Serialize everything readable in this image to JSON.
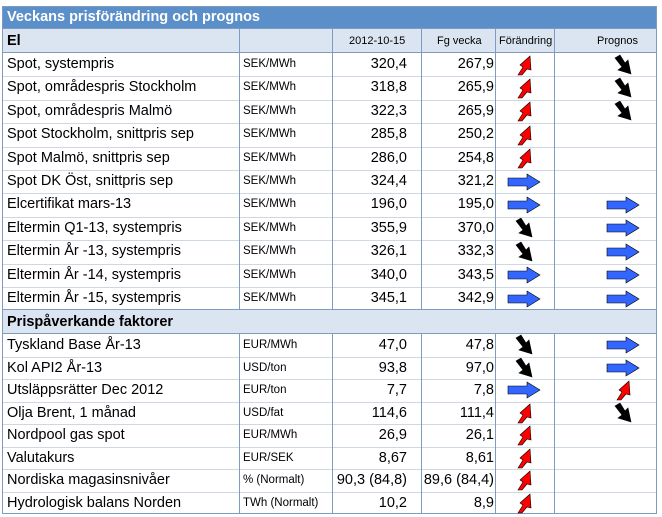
{
  "title": "Veckans prisförändring och prognos",
  "section_el": {
    "label": "El",
    "col_date": "2012-10-15",
    "col_prev": "Fg vecka",
    "col_change": "Förändring",
    "col_forecast": "Prognos"
  },
  "section_factors": {
    "label": "Prispåverkande faktorer"
  },
  "colors": {
    "title_bg": "#5b8fc9",
    "section_bg": "#dbe5f1",
    "up_arrow": "#ff0000",
    "down_arrow": "#000000",
    "flat_arrow": "#3366ff"
  },
  "rows": [
    {
      "name": "Spot, systempris",
      "unit": "SEK/MWh",
      "current": "320,4",
      "previous": "267,9",
      "change": "up",
      "forecast": "down"
    },
    {
      "name": "Spot, områdespris Stockholm",
      "unit": "SEK/MWh",
      "current": "318,8",
      "previous": "265,9",
      "change": "up",
      "forecast": "down"
    },
    {
      "name": "Spot, områdespris Malmö",
      "unit": "SEK/MWh",
      "current": "322,3",
      "previous": "265,9",
      "change": "up",
      "forecast": "down"
    },
    {
      "name": "Spot Stockholm, snittpris sep",
      "unit": "SEK/MWh",
      "current": "285,8",
      "previous": "250,2",
      "change": "up",
      "forecast": ""
    },
    {
      "name": "Spot Malmö, snittpris sep",
      "unit": "SEK/MWh",
      "current": "286,0",
      "previous": "254,8",
      "change": "up",
      "forecast": ""
    },
    {
      "name": "Spot DK Öst, snittpris sep",
      "unit": "SEK/MWh",
      "current": "324,4",
      "previous": "321,2",
      "change": "flat",
      "forecast": ""
    },
    {
      "name": "Elcertifikat mars-13",
      "unit": "SEK/MWh",
      "current": "196,0",
      "previous": "195,0",
      "change": "flat",
      "forecast": "flat"
    },
    {
      "name": "Eltermin Q1-13, systempris",
      "unit": "SEK/MWh",
      "current": "355,9",
      "previous": "370,0",
      "change": "down",
      "forecast": "flat"
    },
    {
      "name": "Eltermin År -13, systempris",
      "unit": "SEK/MWh",
      "current": "326,1",
      "previous": "332,3",
      "change": "down",
      "forecast": "flat"
    },
    {
      "name": "Eltermin År -14, systempris",
      "unit": "SEK/MWh",
      "current": "340,0",
      "previous": "343,5",
      "change": "flat",
      "forecast": "flat"
    },
    {
      "name": "Eltermin År -15, systempris",
      "unit": "SEK/MWh",
      "current": "345,1",
      "previous": "342,9",
      "change": "flat",
      "forecast": "flat"
    }
  ],
  "factors": [
    {
      "name": "Tyskland Base År-13",
      "unit": "EUR/MWh",
      "current": "47,0",
      "previous": "47,8",
      "change": "down",
      "forecast": "flat"
    },
    {
      "name": "Kol API2 År-13",
      "unit": "USD/ton",
      "current": "93,8",
      "previous": "97,0",
      "change": "down",
      "forecast": "flat"
    },
    {
      "name": "Utsläppsrätter Dec 2012",
      "unit": "EUR/ton",
      "current": "7,7",
      "previous": "7,8",
      "change": "flat",
      "forecast": "up"
    },
    {
      "name": "Olja Brent, 1 månad",
      "unit": "USD/fat",
      "current": "114,6",
      "previous": "111,4",
      "change": "up",
      "forecast": "down"
    },
    {
      "name": "Nordpool gas spot",
      "unit": "EUR/MWh",
      "current": "26,9",
      "previous": "26,1",
      "change": "up",
      "forecast": ""
    },
    {
      "name": "Valutakurs",
      "unit": "EUR/SEK",
      "current": "8,67",
      "previous": "8,61",
      "change": "up",
      "forecast": ""
    },
    {
      "name": "Nordiska magasinsnivåer",
      "unit": "% (Normalt)",
      "current": "90,3 (84,8)",
      "previous": "89,6 (84,4)",
      "change": "up",
      "forecast": ""
    },
    {
      "name": "Hydrologisk balans Norden",
      "unit": "TWh (Normalt)",
      "current": "10,2",
      "previous": "8,9",
      "change": "up",
      "forecast": ""
    }
  ]
}
